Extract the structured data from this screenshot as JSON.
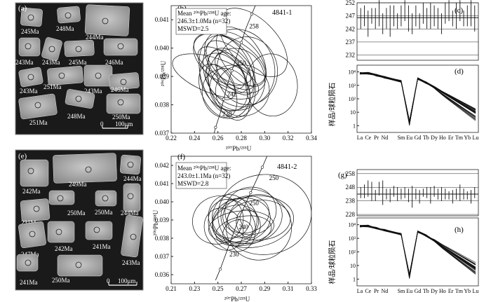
{
  "panel_labels": {
    "a": "(a)",
    "b": "(b)",
    "c": "(c)",
    "d": "(d)",
    "e": "(e)",
    "f": "(f)",
    "g": "(g)",
    "h": "(h)"
  },
  "cl_a": {
    "ages": [
      "245Ma",
      "248Ma",
      "244Ma",
      "243Ma",
      "243Ma",
      "245Ma",
      "246Ma",
      "251Ma",
      "243Ma",
      "243Ma",
      "246Ma",
      "251Ma",
      "248Ma",
      "250Ma"
    ],
    "scale_label": "100μm",
    "scale_zero": "0"
  },
  "cl_e": {
    "ages": [
      "242Ma",
      "249Ma",
      "244Ma",
      "231Ma",
      "250Ma",
      "250Ma",
      "244Ma",
      "247Ma",
      "242Ma",
      "241Ma",
      "243Ma",
      "241Ma",
      "250Ma"
    ],
    "scale_label": "100μm",
    "scale_zero": "0"
  },
  "chart_data": [
    {
      "id": "b",
      "type": "scatter",
      "sample": "4841-1",
      "mean_line1": "Mean ²⁰⁶Pb/²³⁸U age:",
      "mean_line2": "246.3±1.0Ma (n=32)",
      "mswd": "MSWD=2.5",
      "xlabel": "²⁰⁷Pb/²³⁵U",
      "ylabel": "²⁰⁶Pb/²³⁸U",
      "xlim": [
        0.22,
        0.34
      ],
      "ylim": [
        0.037,
        0.0415
      ],
      "xticks": [
        0.22,
        0.24,
        0.26,
        0.28,
        0.3,
        0.32,
        0.34
      ],
      "yticks": [
        0.037,
        0.038,
        0.039,
        0.04,
        0.041
      ],
      "concordia_labels": [
        {
          "age": "258",
          "x": 0.285,
          "y": 0.0407
        },
        {
          "age": "250",
          "x": 0.274,
          "y": 0.0394
        },
        {
          "age": "242",
          "x": 0.266,
          "y": 0.0383
        },
        {
          "age": "238",
          "x": 0.262,
          "y": 0.0376
        }
      ],
      "ellipses": [
        [
          0.27,
          0.0392,
          0.015,
          0.0009,
          -40
        ],
        [
          0.265,
          0.0388,
          0.018,
          0.0011,
          -30
        ],
        [
          0.275,
          0.0395,
          0.02,
          0.0013,
          -45
        ],
        [
          0.26,
          0.0385,
          0.014,
          0.001,
          -25
        ],
        [
          0.28,
          0.0397,
          0.016,
          0.0012,
          -35
        ],
        [
          0.268,
          0.039,
          0.022,
          0.0015,
          -20
        ],
        [
          0.272,
          0.0386,
          0.019,
          0.0008,
          -10
        ],
        [
          0.263,
          0.0393,
          0.012,
          0.001,
          -50
        ],
        [
          0.276,
          0.0389,
          0.024,
          0.0011,
          -15
        ],
        [
          0.27,
          0.0396,
          0.017,
          0.0014,
          -60
        ],
        [
          0.285,
          0.0392,
          0.026,
          0.0012,
          -5
        ],
        [
          0.258,
          0.039,
          0.015,
          0.0016,
          -70
        ],
        [
          0.267,
          0.0384,
          0.02,
          0.0009,
          -30
        ],
        [
          0.274,
          0.0391,
          0.011,
          0.0009,
          -40
        ],
        [
          0.281,
          0.0385,
          0.023,
          0.0009,
          -10
        ],
        [
          0.29,
          0.0402,
          0.02,
          0.0015,
          -45
        ],
        [
          0.265,
          0.0396,
          0.018,
          0.0012,
          -55
        ],
        [
          0.262,
          0.0388,
          0.01,
          0.0007,
          -35
        ],
        [
          0.278,
          0.0393,
          0.03,
          0.0014,
          -25
        ],
        [
          0.269,
          0.0387,
          0.016,
          0.0013,
          -20
        ],
        [
          0.306,
          0.0387,
          0.022,
          0.0011,
          -5
        ],
        [
          0.271,
          0.0394,
          0.013,
          0.0011,
          -45
        ]
      ]
    },
    {
      "id": "c",
      "type": "bar",
      "ylim": [
        230,
        252
      ],
      "yticks": [
        232,
        237,
        242,
        247,
        252
      ],
      "values": [
        246,
        247,
        244,
        247,
        246,
        248,
        244,
        246,
        245,
        247,
        245,
        247,
        249,
        246,
        244,
        247,
        245,
        248,
        246,
        247,
        247,
        246,
        244,
        248,
        249,
        246,
        247,
        249,
        246,
        247,
        248,
        246
      ],
      "errors": [
        4,
        4,
        5,
        3,
        4,
        5,
        4,
        4,
        6,
        4,
        3,
        4,
        4,
        5,
        4,
        4,
        3,
        4,
        4,
        5,
        4,
        4,
        4,
        4,
        4,
        3,
        5,
        4,
        3,
        4,
        5,
        5
      ],
      "mean": 246.3,
      "mean_err": 1.0
    },
    {
      "id": "d",
      "type": "line",
      "categories": [
        "La",
        "Ce",
        "Pr",
        "Nd",
        "",
        "Sm",
        "Eu",
        "Gd",
        "Tb",
        "Dy",
        "Ho",
        "Er",
        "Tm",
        "Yb",
        "Lu"
      ],
      "ylabel": "样品/球粒陨石",
      "n": 30
    },
    {
      "id": "f",
      "type": "scatter",
      "sample": "4841-2",
      "mean_line1": "Mean ²⁰⁶Pb/²³⁸U age:",
      "mean_line2": "243.0±1.1Ma (n=32)",
      "mswd": "MSWD=2.8",
      "xlabel": "²⁰⁷Pb/²³⁵U",
      "ylabel": "²⁰⁶Pb/²³⁸U",
      "xlim": [
        0.21,
        0.33
      ],
      "ylim": [
        0.0355,
        0.0425
      ],
      "xticks": [
        0.21,
        0.23,
        0.25,
        0.27,
        0.29,
        0.31,
        0.33
      ],
      "yticks": [
        0.036,
        0.037,
        0.038,
        0.039,
        0.04,
        0.041,
        0.042
      ],
      "concordia_labels": [
        {
          "age": "250",
          "x": 0.292,
          "y": 0.0412
        },
        {
          "age": "250",
          "x": 0.275,
          "y": 0.0398
        },
        {
          "age": "240",
          "x": 0.266,
          "y": 0.0385
        },
        {
          "age": "230",
          "x": 0.258,
          "y": 0.037
        }
      ],
      "ellipses": [
        [
          0.27,
          0.039,
          0.025,
          0.0012,
          -10
        ],
        [
          0.275,
          0.0392,
          0.03,
          0.0015,
          -5
        ],
        [
          0.265,
          0.0388,
          0.02,
          0.001,
          -15
        ],
        [
          0.28,
          0.0389,
          0.035,
          0.0014,
          -8
        ],
        [
          0.26,
          0.0392,
          0.018,
          0.0012,
          -20
        ],
        [
          0.27,
          0.0386,
          0.028,
          0.0009,
          -5
        ],
        [
          0.278,
          0.0395,
          0.022,
          0.0013,
          -12
        ],
        [
          0.268,
          0.0391,
          0.015,
          0.0011,
          -25
        ],
        [
          0.285,
          0.039,
          0.027,
          0.0011,
          -3
        ],
        [
          0.272,
          0.0384,
          0.024,
          0.0008,
          -10
        ],
        [
          0.262,
          0.0387,
          0.019,
          0.0015,
          -30
        ],
        [
          0.276,
          0.0388,
          0.01,
          0.0008,
          -20
        ],
        [
          0.29,
          0.0393,
          0.04,
          0.0022,
          -5
        ],
        [
          0.274,
          0.0393,
          0.02,
          0.001,
          -15
        ],
        [
          0.267,
          0.0383,
          0.013,
          0.0007,
          -20
        ],
        [
          0.25,
          0.039,
          0.022,
          0.0013,
          -25
        ],
        [
          0.255,
          0.0385,
          0.016,
          0.0012,
          -30
        ],
        [
          0.285,
          0.0386,
          0.028,
          0.0018,
          -5
        ]
      ]
    },
    {
      "id": "g",
      "type": "bar",
      "ylim": [
        227,
        261
      ],
      "yticks": [
        228,
        238,
        248,
        258
      ],
      "values": [
        244,
        245,
        247,
        245,
        242,
        247,
        244,
        243,
        242,
        245,
        243,
        243,
        244,
        242,
        241,
        243,
        241,
        244,
        244,
        242,
        245,
        243,
        243,
        243,
        242,
        241,
        243,
        244,
        243,
        242,
        241,
        244
      ],
      "errors": [
        4,
        5,
        6,
        7,
        4,
        5,
        9,
        4,
        5,
        4,
        5,
        4,
        4,
        5,
        8,
        4,
        5,
        3,
        4,
        6,
        4,
        4,
        5,
        4,
        3,
        5,
        4,
        6,
        4,
        3,
        5,
        4
      ],
      "mean": 243.0,
      "mean_err": 1.1
    },
    {
      "id": "h",
      "type": "line",
      "categories": [
        "La",
        "Ce",
        "Pr",
        "Nd",
        "",
        "Sm",
        "Eu",
        "Gd",
        "Tb",
        "Dy",
        "Ho",
        "Er",
        "Tm",
        "Yb",
        "Lu"
      ],
      "ylabel": "样品/球粒陨石",
      "n": 25
    }
  ],
  "tick_labels": {
    "d_y": [
      "10⁴",
      "10³",
      "10²",
      "10",
      "1"
    ],
    "h_y": [
      "10⁴",
      "10³",
      "10²",
      "10",
      "1"
    ]
  }
}
